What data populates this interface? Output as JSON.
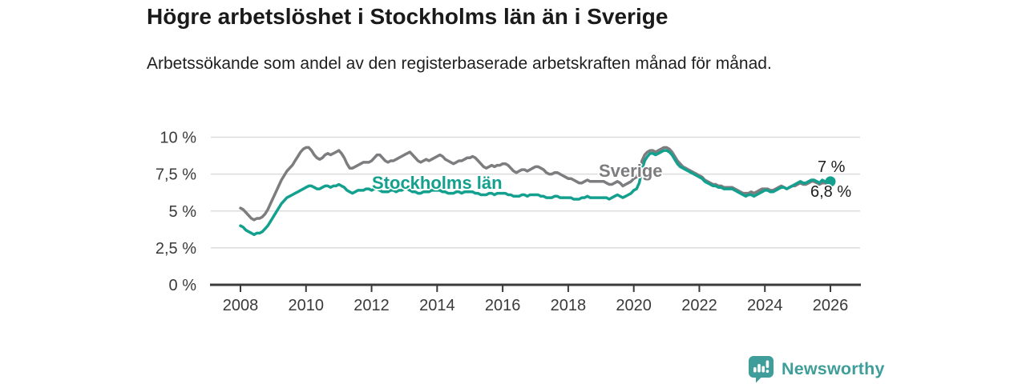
{
  "chart_data": {
    "type": "line",
    "title": "Högre arbetslöshet i Stockholms län än i Sverige",
    "subtitle": "Arbetssökande som andel av den registerbaserade arbetskraften månad för månad.",
    "xlabel": "",
    "ylabel": "",
    "ylim": [
      0,
      10
    ],
    "xlim_years": [
      2007.1,
      2026.9
    ],
    "grid": true,
    "legend_position": "inline-labels-on-lines",
    "x_start_year": 2008,
    "points_per_year": 12,
    "y_ticks": [
      {
        "value": 0,
        "label": "0 %"
      },
      {
        "value": 2.5,
        "label": "2,5 %"
      },
      {
        "value": 5,
        "label": "5 %"
      },
      {
        "value": 7.5,
        "label": "7,5 %"
      },
      {
        "value": 10,
        "label": "10 %"
      }
    ],
    "x_ticks": [
      {
        "year": 2008,
        "label": "2008"
      },
      {
        "year": 2010,
        "label": "2010"
      },
      {
        "year": 2012,
        "label": "2012"
      },
      {
        "year": 2014,
        "label": "2014"
      },
      {
        "year": 2016,
        "label": "2016"
      },
      {
        "year": 2018,
        "label": "2018"
      },
      {
        "year": 2020,
        "label": "2020"
      },
      {
        "year": 2022,
        "label": "2022"
      },
      {
        "year": 2024,
        "label": "2024"
      },
      {
        "year": 2026,
        "label": "2026"
      }
    ],
    "series": [
      {
        "name": "Sverige",
        "color": "#7d7d80",
        "end_label": "6,8 %",
        "end_value": 6.8,
        "end_dot": false,
        "values": [
          5.2,
          5.1,
          4.9,
          4.7,
          4.5,
          4.4,
          4.5,
          4.5,
          4.6,
          4.8,
          5.1,
          5.5,
          5.9,
          6.3,
          6.7,
          7.1,
          7.4,
          7.7,
          7.9,
          8.1,
          8.4,
          8.7,
          9.0,
          9.2,
          9.3,
          9.3,
          9.1,
          8.8,
          8.6,
          8.5,
          8.6,
          8.8,
          8.9,
          8.8,
          8.9,
          9.0,
          9.1,
          8.9,
          8.6,
          8.2,
          7.9,
          7.9,
          8.0,
          8.1,
          8.2,
          8.3,
          8.3,
          8.3,
          8.4,
          8.6,
          8.8,
          8.8,
          8.6,
          8.4,
          8.3,
          8.4,
          8.4,
          8.5,
          8.6,
          8.7,
          8.8,
          8.9,
          9.0,
          8.8,
          8.6,
          8.4,
          8.3,
          8.4,
          8.5,
          8.4,
          8.5,
          8.6,
          8.7,
          8.8,
          8.7,
          8.5,
          8.4,
          8.3,
          8.2,
          8.3,
          8.4,
          8.4,
          8.5,
          8.6,
          8.6,
          8.7,
          8.6,
          8.4,
          8.2,
          8.0,
          7.9,
          8.0,
          8.1,
          8.0,
          8.1,
          8.1,
          8.2,
          8.2,
          8.1,
          7.9,
          7.7,
          7.6,
          7.7,
          7.8,
          7.8,
          7.7,
          7.8,
          7.9,
          8.0,
          8.0,
          7.9,
          7.8,
          7.6,
          7.5,
          7.5,
          7.6,
          7.6,
          7.5,
          7.4,
          7.3,
          7.2,
          7.2,
          7.1,
          7.0,
          6.9,
          6.9,
          7.0,
          7.1,
          7.0,
          7.0,
          7.0,
          7.0,
          7.0,
          7.0,
          6.9,
          6.8,
          6.8,
          6.9,
          7.0,
          6.9,
          6.7,
          6.8,
          6.9,
          7.0,
          7.2,
          7.3,
          7.6,
          8.4,
          8.8,
          9.0,
          9.1,
          9.1,
          9.0,
          9.1,
          9.2,
          9.3,
          9.3,
          9.2,
          9.0,
          8.7,
          8.4,
          8.2,
          8.0,
          7.9,
          7.8,
          7.7,
          7.6,
          7.5,
          7.4,
          7.3,
          7.1,
          7.0,
          6.9,
          6.8,
          6.8,
          6.7,
          6.7,
          6.6,
          6.6,
          6.6,
          6.6,
          6.5,
          6.4,
          6.3,
          6.2,
          6.2,
          6.2,
          6.3,
          6.2,
          6.3,
          6.4,
          6.5,
          6.5,
          6.5,
          6.4,
          6.4,
          6.5,
          6.6,
          6.7,
          6.6,
          6.5,
          6.6,
          6.7,
          6.7,
          6.8,
          6.9,
          6.8,
          6.8,
          6.9,
          7.0,
          7.0,
          6.9,
          6.8,
          6.9,
          6.9,
          6.8,
          6.8
        ]
      },
      {
        "name": "Stockholms län",
        "color": "#13a08e",
        "end_label": "7 %",
        "end_value": 7.0,
        "end_dot": true,
        "values": [
          4.0,
          3.9,
          3.7,
          3.6,
          3.5,
          3.4,
          3.5,
          3.5,
          3.6,
          3.8,
          4.0,
          4.3,
          4.6,
          4.9,
          5.2,
          5.5,
          5.7,
          5.9,
          6.0,
          6.1,
          6.2,
          6.3,
          6.4,
          6.5,
          6.6,
          6.7,
          6.7,
          6.6,
          6.5,
          6.5,
          6.6,
          6.7,
          6.7,
          6.6,
          6.7,
          6.7,
          6.8,
          6.7,
          6.6,
          6.4,
          6.3,
          6.2,
          6.3,
          6.4,
          6.4,
          6.4,
          6.5,
          6.5,
          6.4,
          6.5,
          6.5,
          6.4,
          6.3,
          6.3,
          6.3,
          6.4,
          6.4,
          6.3,
          6.4,
          6.4,
          6.5,
          6.5,
          6.4,
          6.3,
          6.3,
          6.2,
          6.2,
          6.3,
          6.3,
          6.3,
          6.4,
          6.4,
          6.4,
          6.4,
          6.3,
          6.3,
          6.2,
          6.2,
          6.2,
          6.3,
          6.3,
          6.2,
          6.3,
          6.3,
          6.3,
          6.3,
          6.2,
          6.2,
          6.1,
          6.1,
          6.1,
          6.2,
          6.2,
          6.1,
          6.2,
          6.2,
          6.2,
          6.2,
          6.1,
          6.1,
          6.0,
          6.0,
          6.0,
          6.1,
          6.1,
          6.0,
          6.1,
          6.1,
          6.1,
          6.1,
          6.0,
          6.0,
          5.9,
          5.9,
          5.9,
          6.0,
          6.0,
          5.9,
          5.9,
          5.9,
          5.9,
          5.9,
          5.8,
          5.8,
          5.8,
          5.9,
          5.9,
          6.0,
          5.9,
          5.9,
          5.9,
          5.9,
          5.9,
          5.9,
          5.9,
          5.8,
          5.9,
          6.0,
          6.1,
          6.0,
          5.9,
          6.0,
          6.1,
          6.2,
          6.4,
          6.5,
          6.9,
          7.8,
          8.4,
          8.7,
          8.9,
          8.9,
          8.8,
          8.9,
          9.0,
          9.1,
          9.1,
          9.0,
          8.8,
          8.5,
          8.2,
          8.0,
          7.9,
          7.8,
          7.7,
          7.6,
          7.5,
          7.4,
          7.3,
          7.2,
          7.0,
          6.9,
          6.8,
          6.7,
          6.7,
          6.6,
          6.6,
          6.5,
          6.5,
          6.5,
          6.5,
          6.4,
          6.3,
          6.2,
          6.1,
          6.0,
          6.1,
          6.1,
          6.0,
          6.1,
          6.2,
          6.3,
          6.4,
          6.4,
          6.3,
          6.3,
          6.4,
          6.5,
          6.6,
          6.6,
          6.5,
          6.6,
          6.7,
          6.8,
          6.9,
          7.0,
          6.9,
          6.9,
          7.0,
          7.1,
          7.1,
          7.0,
          6.9,
          7.1,
          7.0,
          6.9,
          7.0
        ]
      }
    ]
  },
  "colors": {
    "accent_teal": "#13a08e",
    "line_gray": "#7d7d80",
    "grid": "#dcdcdc",
    "axis": "#3a3a3a",
    "text": "#1a1a1a",
    "brand_teal": "#3f9e99",
    "background": "#ffffff"
  },
  "branding": {
    "logo_text": "Newsworthy",
    "logo_icon": "bar-chart-speech-bubble-icon"
  }
}
